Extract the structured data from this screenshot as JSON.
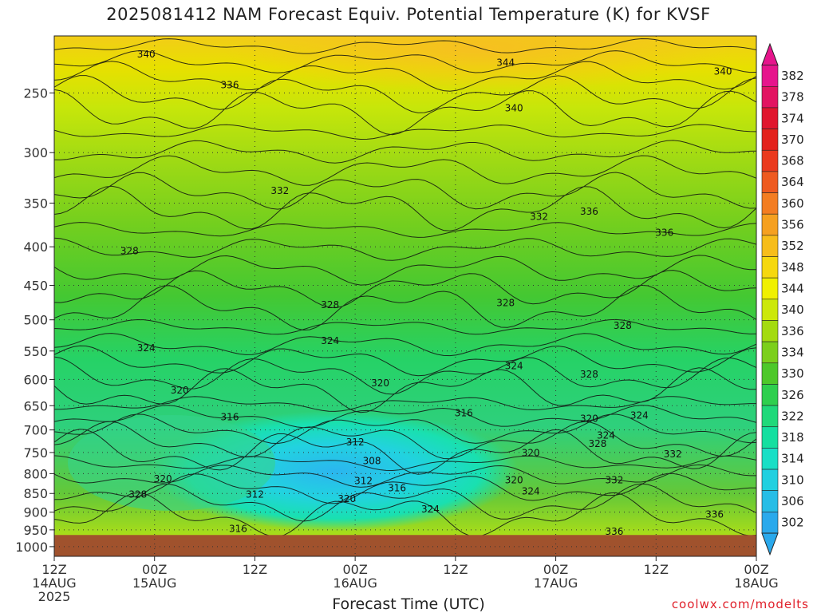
{
  "chart_data": {
    "type": "heatmap",
    "title": "2025081412 NAM Forecast Equiv. Potential Temperature (K) for KVSF",
    "xlabel": "Forecast Time (UTC)",
    "ylabel": "",
    "credit": "coolwx.com/modelts",
    "y_axis": {
      "scale": "log",
      "unit": "hPa",
      "range": [
        1030,
        210
      ],
      "ticks": [
        250,
        300,
        350,
        400,
        450,
        500,
        550,
        600,
        650,
        700,
        750,
        800,
        850,
        900,
        950,
        1000
      ]
    },
    "x_axis": {
      "range": [
        "2025-08-14 12Z",
        "2025-08-18 00Z"
      ],
      "ticks": [
        {
          "value": "2025-08-14 12Z",
          "lines": [
            "12Z",
            "14AUG",
            "2025"
          ]
        },
        {
          "value": "2025-08-15 00Z",
          "lines": [
            "00Z",
            "15AUG"
          ]
        },
        {
          "value": "2025-08-15 12Z",
          "lines": [
            "12Z"
          ]
        },
        {
          "value": "2025-08-16 00Z",
          "lines": [
            "00Z",
            "16AUG"
          ]
        },
        {
          "value": "2025-08-16 12Z",
          "lines": [
            "12Z"
          ]
        },
        {
          "value": "2025-08-17 00Z",
          "lines": [
            "00Z",
            "17AUG"
          ]
        },
        {
          "value": "2025-08-17 12Z",
          "lines": [
            "12Z"
          ]
        },
        {
          "value": "2025-08-18 00Z",
          "lines": [
            "00Z",
            "18AUG"
          ]
        }
      ]
    },
    "colorbar": {
      "levels": [
        302,
        306,
        310,
        314,
        318,
        322,
        326,
        330,
        334,
        336,
        340,
        344,
        348,
        352,
        356,
        360,
        364,
        368,
        370,
        374,
        378,
        382
      ],
      "colors": [
        "#2aa9ec",
        "#27bde6",
        "#21d0e0",
        "#19dfc6",
        "#14dfa0",
        "#1fd97a",
        "#2ecf4e",
        "#4ec82a",
        "#7ccf1c",
        "#a4db10",
        "#cce80a",
        "#f0f000",
        "#f6d80e",
        "#f7bd1a",
        "#f5a020",
        "#f37d22",
        "#ee5a20",
        "#ea3a1e",
        "#e3221c",
        "#e0162e",
        "#e21462",
        "#e6158c"
      ]
    },
    "ground_level_hpa": 965,
    "grid": true,
    "contour_labels": [
      {
        "value": "340",
        "time": "2025-08-14 23Z",
        "p": 222
      },
      {
        "value": "344",
        "time": "2025-08-16 18Z",
        "p": 228
      },
      {
        "value": "340",
        "time": "2025-08-17 20Z",
        "p": 234
      },
      {
        "value": "336",
        "time": "2025-08-15 09Z",
        "p": 244
      },
      {
        "value": "340",
        "time": "2025-08-16 19Z",
        "p": 262
      },
      {
        "value": "332",
        "time": "2025-08-15 15Z",
        "p": 337
      },
      {
        "value": "332",
        "time": "2025-08-16 22Z",
        "p": 365
      },
      {
        "value": "336",
        "time": "2025-08-17 04Z",
        "p": 359
      },
      {
        "value": "336",
        "time": "2025-08-17 13Z",
        "p": 383
      },
      {
        "value": "328",
        "time": "2025-08-14 21Z",
        "p": 405
      },
      {
        "value": "328",
        "time": "2025-08-15 21Z",
        "p": 478
      },
      {
        "value": "328",
        "time": "2025-08-16 18Z",
        "p": 475
      },
      {
        "value": "328",
        "time": "2025-08-17 08Z",
        "p": 509
      },
      {
        "value": "324",
        "time": "2025-08-14 23Z",
        "p": 545
      },
      {
        "value": "324",
        "time": "2025-08-15 21Z",
        "p": 533
      },
      {
        "value": "324",
        "time": "2025-08-16 19Z",
        "p": 576
      },
      {
        "value": "328",
        "time": "2025-08-17 04Z",
        "p": 591
      },
      {
        "value": "320",
        "time": "2025-08-15 03Z",
        "p": 620
      },
      {
        "value": "320",
        "time": "2025-08-16 03Z",
        "p": 607
      },
      {
        "value": "316",
        "time": "2025-08-15 09Z",
        "p": 673
      },
      {
        "value": "316",
        "time": "2025-08-16 13Z",
        "p": 665
      },
      {
        "value": "320",
        "time": "2025-08-17 04Z",
        "p": 676
      },
      {
        "value": "324",
        "time": "2025-08-17 10Z",
        "p": 670
      },
      {
        "value": "324",
        "time": "2025-08-17 06Z",
        "p": 712
      },
      {
        "value": "328",
        "time": "2025-08-17 05Z",
        "p": 730
      },
      {
        "value": "312",
        "time": "2025-08-16 00Z",
        "p": 727
      },
      {
        "value": "308",
        "time": "2025-08-16 02Z",
        "p": 770
      },
      {
        "value": "320",
        "time": "2025-08-16 21Z",
        "p": 751
      },
      {
        "value": "332",
        "time": "2025-08-17 14Z",
        "p": 754
      },
      {
        "value": "320",
        "time": "2025-08-15 01Z",
        "p": 813
      },
      {
        "value": "312",
        "time": "2025-08-16 01Z",
        "p": 818
      },
      {
        "value": "316",
        "time": "2025-08-16 05Z",
        "p": 836
      },
      {
        "value": "320",
        "time": "2025-08-16 19Z",
        "p": 816
      },
      {
        "value": "324",
        "time": "2025-08-16 21Z",
        "p": 844
      },
      {
        "value": "332",
        "time": "2025-08-17 07Z",
        "p": 816
      },
      {
        "value": "328",
        "time": "2025-08-14 22Z",
        "p": 853
      },
      {
        "value": "312",
        "time": "2025-08-15 12Z",
        "p": 853
      },
      {
        "value": "320",
        "time": "2025-08-15 23Z",
        "p": 864
      },
      {
        "value": "324",
        "time": "2025-08-16 09Z",
        "p": 892
      },
      {
        "value": "316",
        "time": "2025-08-15 10Z",
        "p": 947
      },
      {
        "value": "336",
        "time": "2025-08-17 07Z",
        "p": 955
      },
      {
        "value": "336",
        "time": "2025-08-17 19Z",
        "p": 906
      }
    ]
  }
}
